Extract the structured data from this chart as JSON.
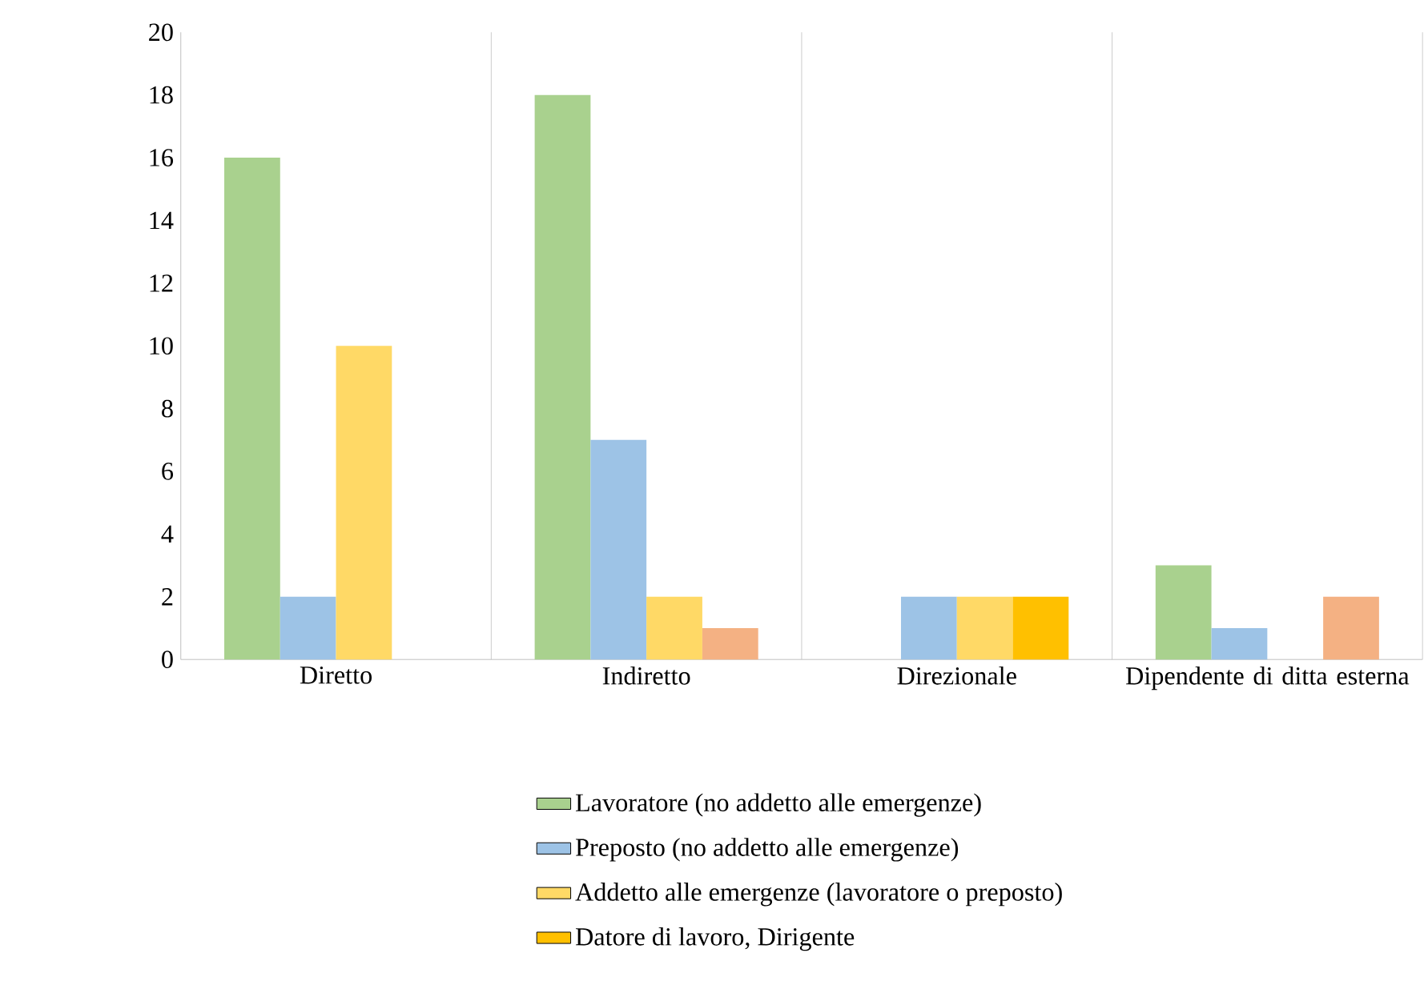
{
  "chart_data": {
    "type": "bar",
    "categories": [
      "Diretto",
      "Indiretto",
      "Direzionale",
      "Dipendente di ditta esterna"
    ],
    "series": [
      {
        "name": "Lavoratore (no addetto alle emergenze)",
        "color": "#a9d18e",
        "values": [
          16,
          18,
          0,
          3
        ]
      },
      {
        "name": "Preposto (no addetto alle emergenze)",
        "color": "#9dc3e6",
        "values": [
          2,
          7,
          2,
          1
        ]
      },
      {
        "name": "Addetto alle emergenze (lavoratore o preposto)",
        "color": "#ffd966",
        "values": [
          10,
          2,
          2,
          0
        ]
      },
      {
        "name": "Datore di lavoro, Dirigente",
        "color": "#ffc000",
        "colors": [
          "#ffc000",
          "#f4b183",
          "#ffc000",
          "#f4b183"
        ],
        "values": [
          0,
          1,
          2,
          2
        ]
      }
    ],
    "ylim": [
      0,
      20
    ],
    "yticks": [
      0,
      2,
      4,
      6,
      8,
      10,
      12,
      14,
      16,
      18,
      20
    ],
    "grid": "x",
    "legend": "bottom"
  }
}
